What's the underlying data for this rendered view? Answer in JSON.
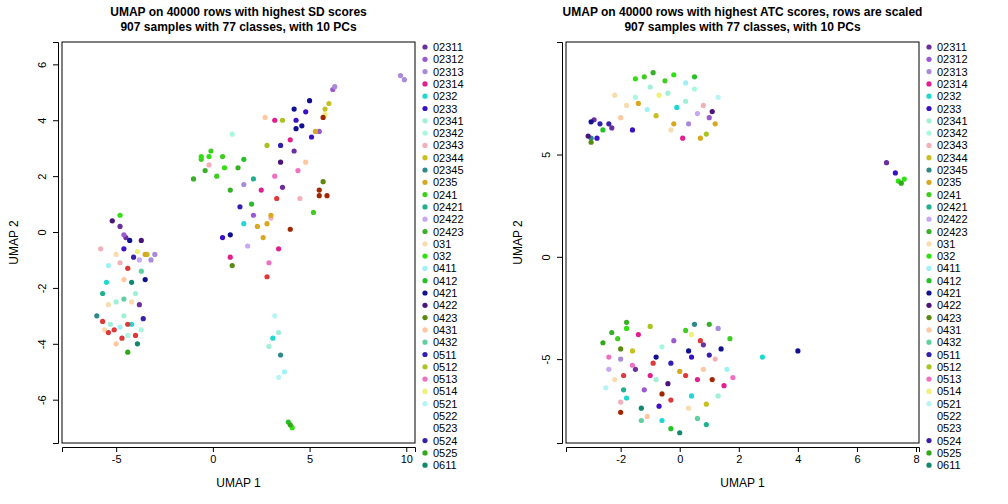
{
  "chart_data": [
    {
      "type": "scatter",
      "title": "UMAP on 40000 rows with highest SD scores",
      "subtitle": "907 samples with 77 classes, with 10 PCs",
      "x_label": "UMAP 1",
      "y_label": "UMAP 2",
      "xlim": [
        -7.8,
        10.45
      ],
      "ylim": [
        -7.55,
        6.8
      ],
      "xticks": [
        -5,
        0,
        5,
        10
      ],
      "yticks": [
        -6,
        -4,
        -2,
        0,
        2,
        4,
        6
      ],
      "legend": "right",
      "marker": "circle",
      "series": [
        {
          "name": "02311",
          "color": "#6b2fa0",
          "x": [
            -4.8,
            -4.5,
            4.2,
            3.6,
            -3.8
          ],
          "values": [
            0.2,
            -0.2,
            2.9,
            1.6,
            -2.6
          ]
        },
        {
          "name": "02312",
          "color": "#9b59d0",
          "x": [
            5.5,
            6.2,
            -4.6,
            2.1
          ],
          "values": [
            3.6,
            5.1,
            -0.1,
            0.6
          ]
        },
        {
          "name": "02313",
          "color": "#a88ad8",
          "x": [
            -3,
            6.3,
            1.6,
            -3.2,
            9.7,
            9.9
          ],
          "values": [
            -0.8,
            5.2,
            1.7,
            -1,
            5.6,
            5.45
          ]
        },
        {
          "name": "02314",
          "color": "#e0208c",
          "x": [
            2.5,
            4.0,
            3.4,
            0.9,
            3.2
          ],
          "values": [
            1.5,
            3.3,
            -0.6,
            -0.9,
            4.0
          ]
        },
        {
          "name": "0232",
          "color": "#20d8d0",
          "x": [
            -5.5,
            1.6,
            -4.2,
            3.1
          ],
          "values": [
            -1.8,
            0.3,
            -3.3,
            -3.8
          ]
        },
        {
          "name": "0233",
          "color": "#3a10c8",
          "x": [
            4.3,
            4.8,
            5.1,
            -4.6,
            0.5
          ],
          "values": [
            4.0,
            4.3,
            3.4,
            -0.6,
            -0.2
          ]
        },
        {
          "name": "02341",
          "color": "#a0f0d8",
          "x": [
            -5.0,
            -4.6,
            -4.0,
            -5.3,
            3.4,
            2.9
          ],
          "values": [
            -2.5,
            -3.0,
            -2.2,
            -3.3,
            -3.6,
            -4.1
          ]
        },
        {
          "name": "02342",
          "color": "#a8f8e0",
          "x": [
            -4.4,
            -3.7,
            1.0
          ],
          "values": [
            -3.7,
            -3.5,
            3.5
          ]
        },
        {
          "name": "02343",
          "color": "#f4b0b8",
          "x": [
            -5.8,
            -4.8,
            3.0,
            -0.2,
            4.5
          ],
          "values": [
            -0.6,
            -1.1,
            0.5,
            2.4,
            1.2
          ]
        },
        {
          "name": "02344",
          "color": "#c8c020",
          "x": [
            6.0,
            -3.4,
            5.8
          ],
          "values": [
            4.6,
            -0.8,
            4.4
          ]
        },
        {
          "name": "02345",
          "color": "#308888",
          "x": [
            -6.0,
            3.5
          ],
          "values": [
            -3.0,
            -4.4
          ]
        },
        {
          "name": "0235",
          "color": "#d8a820",
          "x": [
            2.3,
            2.8,
            3.0,
            2.6,
            -3.5,
            5.3
          ],
          "values": [
            0.2,
            0.3,
            0.6,
            -0.2,
            -0.8,
            3.6
          ]
        },
        {
          "name": "0241",
          "color": "#40cc20",
          "x": [
            -0.6,
            0.2,
            0.5,
            -0.1,
            5.2
          ],
          "values": [
            2.6,
            2.0,
            2.7,
            2.9,
            0.7
          ]
        },
        {
          "name": "02421",
          "color": "#20b090",
          "x": [
            -5.7,
            2.1
          ],
          "values": [
            -2.2,
            1.9
          ]
        },
        {
          "name": "02422",
          "color": "#c8a8f0",
          "x": [
            -3.8,
            1.8
          ],
          "values": [
            -1.0,
            -0.5
          ]
        },
        {
          "name": "02423",
          "color": "#38b028",
          "x": [
            0.9,
            -1.0,
            1.3,
            -0.4
          ],
          "values": [
            1.5,
            1.9,
            2.3,
            2.2
          ]
        },
        {
          "name": "031",
          "color": "#f8dcb0",
          "x": [
            -5.0,
            -4.4,
            -5.4,
            -4.2,
            -5.6
          ],
          "values": [
            -0.8,
            -1.3,
            -2.6,
            -2.5,
            -3.5
          ]
        },
        {
          "name": "032",
          "color": "#30e010",
          "x": [
            -0.6,
            -0.2,
            0.6,
            4.1,
            -4.8
          ],
          "values": [
            2.7,
            2.7,
            2.3,
            -7.0,
            0.6
          ]
        },
        {
          "name": "0411",
          "color": "#a0f0f8",
          "x": [
            -4.8,
            3.7,
            -5.4
          ],
          "values": [
            -3.4,
            -5.0,
            -1.2
          ]
        },
        {
          "name": "0412",
          "color": "#28c028",
          "x": [
            1.6,
            2.0,
            3.9
          ],
          "values": [
            2.6,
            1.0,
            -6.8
          ]
        },
        {
          "name": "0421",
          "color": "#101090",
          "x": [
            4.3,
            4.6,
            5.0,
            4.2,
            -4.3,
            0.9,
            -3.5
          ],
          "values": [
            3.7,
            3.8,
            4.7,
            4.4,
            -0.3,
            -0.1,
            -1.7
          ]
        },
        {
          "name": "0422",
          "color": "#4a1478",
          "x": [
            -5.2,
            -3.7,
            3.5
          ],
          "values": [
            0.4,
            -0.3,
            2.5
          ]
        },
        {
          "name": "0423",
          "color": "#5a8a10",
          "x": [
            5.7,
            1.0
          ],
          "values": [
            1.8,
            -1.2
          ]
        },
        {
          "name": "0431",
          "color": "#ffc8a0",
          "x": [
            -5.0,
            -4.6,
            2.7,
            4.8
          ],
          "values": [
            -4.0,
            -1.7,
            4.1,
            2.5
          ]
        },
        {
          "name": "0432",
          "color": "#60d0a0",
          "x": [
            -4.6,
            -3.7
          ],
          "values": [
            -2.4,
            -1.4
          ]
        },
        {
          "name": "0511",
          "color": "#3020b0",
          "x": [
            3.5,
            1.4
          ],
          "values": [
            3.1,
            0.9
          ]
        },
        {
          "name": "0512",
          "color": "#a8c420",
          "x": [
            2.8,
            3.6
          ],
          "values": [
            3.1,
            4.0
          ]
        },
        {
          "name": "0513",
          "color": "#f070c0",
          "x": [
            3.2,
            4.4,
            2.9
          ],
          "values": [
            2.0,
            2.2,
            -1.1
          ]
        },
        {
          "name": "0514",
          "color": "#f0f078",
          "x": [
            5.8,
            -3.9
          ],
          "values": [
            4.2,
            -0.7
          ]
        },
        {
          "name": "0521",
          "color": "#b8f4f4",
          "x": [
            3.4,
            3.2
          ],
          "values": [
            -5.2,
            -3.0
          ]
        },
        {
          "name": "0522",
          "color": "#ffffff",
          "x": [],
          "values": []
        },
        {
          "name": "0523",
          "color": "#ffffff",
          "x": [],
          "values": []
        },
        {
          "name": "0524",
          "color": "#3a20a8",
          "x": [
            -3.6,
            -4.1
          ],
          "values": [
            -3.1,
            -0.9
          ]
        },
        {
          "name": "0525",
          "color": "#30a818",
          "x": [
            4.0,
            -4.4
          ],
          "values": [
            -6.9,
            -4.3
          ]
        },
        {
          "name": "0611",
          "color": "#108870",
          "x": [
            -4.2,
            -3.9
          ],
          "values": [
            -1.8,
            -4.0
          ]
        },
        {
          "color": "#e03838",
          "x": [
            -5.7,
            -5.1,
            -4.7,
            -4.4,
            -5.4,
            -4.0,
            3.3,
            2.8,
            -4.4
          ],
          "values": [
            -3.2,
            -3.5,
            -3.8,
            -3.3,
            -3.6,
            -3.7,
            1.2,
            -1.6,
            -1.3
          ]
        },
        {
          "color": "#a02800",
          "x": [
            5.5,
            5.9,
            5.7,
            5.5,
            4.0
          ],
          "values": [
            1.5,
            1.3,
            4.1,
            1.3,
            0.1
          ]
        }
      ]
    },
    {
      "type": "scatter",
      "title": "UMAP on 40000 rows with highest ATC scores, rows are scaled",
      "subtitle": "907 samples with 77 classes, with 10 PCs",
      "x_label": "UMAP 1",
      "y_label": "UMAP 2",
      "xlim": [
        -3.85,
        8.1
      ],
      "ylim": [
        -9.1,
        10.5
      ],
      "xticks": [
        -2,
        0,
        2,
        4,
        6,
        8
      ],
      "yticks": [
        -5,
        0,
        5
      ],
      "legend": "right",
      "marker": "circle",
      "series": [
        {
          "name": "02311",
          "color": "#6b2fa0",
          "x": [
            -2.9,
            -2.3,
            -1.5,
            0.8,
            7.0
          ],
          "values": [
            6.7,
            6.3,
            -5.5,
            -4.3,
            4.6
          ]
        },
        {
          "name": "02312",
          "color": "#9b59d0",
          "x": [
            1.0,
            -1.2,
            -0.2
          ],
          "values": [
            6.8,
            -6.5,
            -4.1
          ]
        },
        {
          "name": "02313",
          "color": "#a88ad8",
          "x": [
            -2.0,
            0.3,
            1.3
          ],
          "values": [
            -5.0,
            6.5,
            -3.5
          ]
        },
        {
          "name": "02314",
          "color": "#e0208c",
          "x": [
            -1.0,
            0.6,
            1.5,
            -1.4,
            0.1
          ],
          "values": [
            -5.8,
            -6.0,
            -6.3,
            -3.8,
            5.8
          ]
        },
        {
          "name": "0232",
          "color": "#20d8d0",
          "x": [
            -0.6,
            0.4,
            -1.8,
            -0.1,
            2.8
          ],
          "values": [
            -8.0,
            -6.8,
            -6.9,
            7.3,
            -4.9
          ]
        },
        {
          "name": "0233",
          "color": "#3a10c8",
          "x": [
            -2.8,
            -1.6,
            0.4,
            -0.7,
            7.3
          ],
          "values": [
            5.8,
            6.2,
            -4.9,
            -7.3,
            4.1
          ]
        },
        {
          "name": "02341",
          "color": "#a0f0d8",
          "x": [
            -1.0,
            -0.4,
            0.2,
            -0.8,
            1.3
          ],
          "values": [
            8.3,
            8.0,
            7.6,
            -6.0,
            -6.8
          ]
        },
        {
          "name": "02342",
          "color": "#a8f8e0",
          "x": [
            -1.5,
            0.5,
            -0.6
          ],
          "values": [
            7.8,
            8.2,
            -4.4
          ]
        },
        {
          "name": "02343",
          "color": "#f4b0b8",
          "x": [
            0.8,
            -2.0,
            1.2
          ],
          "values": [
            7.4,
            -7.1,
            -5.0
          ]
        },
        {
          "name": "02344",
          "color": "#c8c020",
          "x": [
            -0.8,
            0.9,
            -1.6
          ],
          "values": [
            6.9,
            -7.2,
            -4.6
          ]
        },
        {
          "name": "02345",
          "color": "#308888",
          "x": [
            -3.0,
            0.5
          ],
          "values": [
            5.8,
            -3.3
          ]
        },
        {
          "name": "0235",
          "color": "#d8a820",
          "x": [
            -1.4,
            -0.2,
            0.7,
            1.2,
            0.0
          ],
          "values": [
            7.5,
            6.5,
            5.8,
            6.5,
            -5.6
          ]
        },
        {
          "name": "0241",
          "color": "#40cc20",
          "x": [
            -1.2,
            -0.5,
            -2.1,
            0.2,
            1.7
          ],
          "values": [
            8.8,
            8.6,
            -4.0,
            -3.6,
            -4.0
          ]
        },
        {
          "name": "02421",
          "color": "#20b090",
          "x": [
            -1.9,
            0.9
          ],
          "values": [
            -6.5,
            -8.2
          ]
        },
        {
          "name": "02422",
          "color": "#c8a8f0",
          "x": [
            -2.4,
            0.6
          ],
          "values": [
            -5.5,
            7.0
          ]
        },
        {
          "name": "02423",
          "color": "#38b028",
          "x": [
            -2.3,
            -1.8,
            1.0,
            -0.9
          ],
          "values": [
            -3.7,
            -3.2,
            -3.3,
            9.0
          ]
        },
        {
          "name": "031",
          "color": "#f8dcb0",
          "x": [
            -2.2,
            -1.8,
            -0.3,
            0.3,
            -2.2
          ],
          "values": [
            7.9,
            7.4,
            6.2,
            -7.4,
            -6.0
          ]
        },
        {
          "name": "032",
          "color": "#30e010",
          "x": [
            -0.2,
            -1.8,
            -1.5,
            7.4,
            7.6
          ],
          "values": [
            8.9,
            -3.5,
            8.7,
            3.7,
            3.8
          ]
        },
        {
          "name": "0411",
          "color": "#a0f0f8",
          "x": [
            -1.1,
            0.2,
            1.6
          ],
          "values": [
            7.2,
            8.5,
            -5.5
          ]
        },
        {
          "name": "0412",
          "color": "#28c028",
          "x": [
            -2.6,
            -0.3,
            0.5
          ],
          "values": [
            6.2,
            -8.4,
            8.8
          ]
        },
        {
          "name": "0421",
          "color": "#101090",
          "x": [
            -3.0,
            0.3,
            -0.8,
            1.4,
            4.0
          ],
          "values": [
            6.6,
            -4.6,
            -4.9,
            -4.5,
            -4.6
          ]
        },
        {
          "name": "0422",
          "color": "#4a1478",
          "x": [
            -3.1,
            -0.4,
            1.1
          ],
          "values": [
            5.9,
            -6.2,
            7.1
          ]
        },
        {
          "name": "0423",
          "color": "#5a8a10",
          "x": [
            -2.0,
            -3.0
          ],
          "values": [
            -4.5,
            5.6
          ]
        },
        {
          "name": "0431",
          "color": "#ffc8a0",
          "x": [
            -2.0,
            -1.1,
            0.8
          ],
          "values": [
            6.8,
            -7.8,
            -5.5
          ]
        },
        {
          "name": "0432",
          "color": "#60d0a0",
          "x": [
            -1.3,
            0.6
          ],
          "values": [
            -8.0,
            -7.9
          ]
        },
        {
          "name": "0511",
          "color": "#3020b0",
          "x": [
            -2.7,
            -0.3
          ],
          "values": [
            6.5,
            -5.2
          ]
        },
        {
          "name": "0512",
          "color": "#a8c420",
          "x": [
            0.9,
            -1.0
          ],
          "values": [
            6.0,
            -3.4
          ]
        },
        {
          "name": "0513",
          "color": "#f070c0",
          "x": [
            -1.6,
            1.8,
            -2.4
          ],
          "values": [
            -5.3,
            -5.9,
            -4.9
          ]
        },
        {
          "name": "0514",
          "color": "#f0f078",
          "x": [
            -0.7,
            0.4
          ],
          "values": [
            7.9,
            -3.8
          ]
        },
        {
          "name": "0521",
          "color": "#b8f4f4",
          "x": [
            1.3,
            -2.5
          ],
          "values": [
            7.8,
            -6.4
          ]
        },
        {
          "name": "0522",
          "color": "#ffffff",
          "x": [],
          "values": []
        },
        {
          "name": "0523",
          "color": "#ffffff",
          "x": [],
          "values": []
        },
        {
          "name": "0524",
          "color": "#3a20a8",
          "x": [
            -2.4,
            1.0
          ],
          "values": [
            6.5,
            -4.8
          ]
        },
        {
          "name": "0525",
          "color": "#30a818",
          "x": [
            -2.6,
            7.5
          ],
          "values": [
            -4.2,
            3.6
          ]
        },
        {
          "name": "0611",
          "color": "#108870",
          "x": [
            -1.3,
            0.0
          ],
          "values": [
            -7.4,
            -8.6
          ]
        },
        {
          "color": "#e03838",
          "x": [
            -0.9,
            0.2,
            -0.3,
            0.7,
            -1.9
          ],
          "values": [
            -5.2,
            -5.8,
            -7.0,
            -4.1,
            -5.8
          ]
        },
        {
          "color": "#a02800",
          "x": [
            -0.6,
            1.1,
            -2.0
          ],
          "values": [
            -6.7,
            -6.0,
            -7.6
          ]
        }
      ]
    }
  ]
}
